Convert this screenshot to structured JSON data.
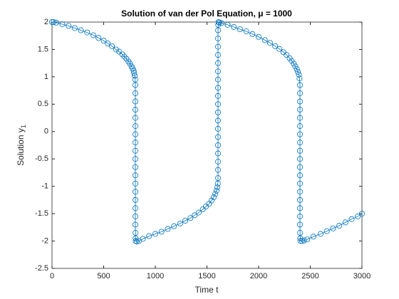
{
  "chart_data": {
    "type": "line",
    "title": "Solution of van der Pol Equation, μ = 1000",
    "xlabel": "Time t",
    "ylabel": "Solution y",
    "ylabel_subscript": "1",
    "color": "#0072bd",
    "marker": "circle",
    "xlim": [
      0,
      3000
    ],
    "xticks": [
      0,
      500,
      1000,
      1500,
      2000,
      2500,
      3000
    ],
    "ylim": [
      -2.5,
      2
    ],
    "yticks": [
      -2.5,
      -2,
      -1.5,
      -1,
      -0.5,
      0,
      0.5,
      1,
      1.5,
      2
    ],
    "x": [
      0,
      15,
      40,
      100,
      160,
      220,
      280,
      340,
      400,
      450,
      500,
      540,
      580,
      620,
      650,
      680,
      700,
      720,
      740,
      755,
      770,
      780,
      790,
      795,
      800,
      805,
      807,
      807,
      807,
      807,
      807,
      807,
      807,
      807,
      807,
      807,
      807,
      807,
      807,
      807,
      807,
      807,
      807,
      807,
      808,
      809,
      810,
      820,
      840,
      880,
      940,
      1000,
      1060,
      1120,
      1180,
      1240,
      1290,
      1340,
      1380,
      1420,
      1460,
      1490,
      1520,
      1545,
      1565,
      1580,
      1592,
      1600,
      1605,
      1607,
      1607,
      1607,
      1607,
      1607,
      1607,
      1607,
      1607,
      1607,
      1607,
      1607,
      1607,
      1607,
      1607,
      1607,
      1607,
      1607,
      1607,
      1607,
      1609,
      1612,
      1620,
      1640,
      1700,
      1760,
      1820,
      1880,
      1940,
      2000,
      2060,
      2110,
      2160,
      2200,
      2240,
      2270,
      2300,
      2320,
      2340,
      2355,
      2370,
      2380,
      2390,
      2396,
      2400,
      2400,
      2400,
      2400,
      2400,
      2400,
      2400,
      2400,
      2400,
      2400,
      2400,
      2400,
      2400,
      2400,
      2400,
      2400,
      2400,
      2400,
      2401,
      2403,
      2405,
      2420,
      2440,
      2470,
      2530,
      2600,
      2660,
      2720,
      2780,
      2840,
      2900,
      2960,
      3000
    ],
    "values": [
      2,
      2,
      1.99,
      1.96,
      1.93,
      1.89,
      1.85,
      1.81,
      1.76,
      1.71,
      1.66,
      1.61,
      1.56,
      1.5,
      1.46,
      1.41,
      1.37,
      1.33,
      1.28,
      1.24,
      1.19,
      1.15,
      1.11,
      1.07,
      1.02,
      0.95,
      0.85,
      0.7,
      0.55,
      0.4,
      0.25,
      0.1,
      -0.05,
      -0.2,
      -0.35,
      -0.5,
      -0.65,
      -0.8,
      -0.95,
      -1.1,
      -1.25,
      -1.4,
      -1.55,
      -1.7,
      -1.85,
      -1.95,
      -2,
      -2.01,
      -2,
      -1.96,
      -1.91,
      -1.87,
      -1.83,
      -1.78,
      -1.73,
      -1.68,
      -1.63,
      -1.58,
      -1.53,
      -1.48,
      -1.42,
      -1.37,
      -1.32,
      -1.26,
      -1.2,
      -1.14,
      -1.08,
      -1.02,
      -0.95,
      -0.85,
      -0.7,
      -0.55,
      -0.4,
      -0.25,
      -0.1,
      0.05,
      0.2,
      0.35,
      0.5,
      0.65,
      0.8,
      0.95,
      1.1,
      1.25,
      1.4,
      1.55,
      1.7,
      1.85,
      1.95,
      2,
      1.99,
      1.98,
      1.95,
      1.91,
      1.87,
      1.83,
      1.78,
      1.73,
      1.67,
      1.62,
      1.56,
      1.51,
      1.45,
      1.4,
      1.34,
      1.29,
      1.24,
      1.19,
      1.14,
      1.09,
      1.04,
      0.97,
      0.85,
      0.7,
      0.55,
      0.4,
      0.25,
      0.1,
      -0.05,
      -0.2,
      -0.35,
      -0.5,
      -0.65,
      -0.8,
      -0.95,
      -1.1,
      -1.25,
      -1.4,
      -1.55,
      -1.7,
      -1.85,
      -1.95,
      -2,
      -2,
      -1.99,
      -1.97,
      -1.92,
      -1.87,
      -1.82,
      -1.77,
      -1.72,
      -1.66,
      -1.6,
      -1.55,
      -1.5
    ]
  }
}
